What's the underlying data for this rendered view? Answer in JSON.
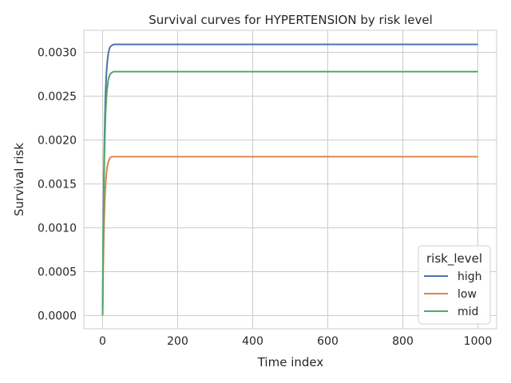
{
  "chart_data": {
    "type": "line",
    "title": "Survival curves for HYPERTENSION by risk level",
    "xlabel": "Time index",
    "ylabel": "Survival risk",
    "xlim": [
      -50,
      1050
    ],
    "ylim": [
      -0.00015,
      0.00325
    ],
    "x_ticks": [
      0,
      200,
      400,
      600,
      800,
      1000
    ],
    "x_tick_labels": [
      "0",
      "200",
      "400",
      "600",
      "800",
      "1000"
    ],
    "y_ticks": [
      0,
      0.0005,
      0.001,
      0.0015,
      0.002,
      0.0025,
      0.003
    ],
    "y_tick_labels": [
      "0.0000",
      "0.0005",
      "0.0010",
      "0.0015",
      "0.0020",
      "0.0025",
      "0.0030"
    ],
    "grid": true,
    "legend": {
      "title": "risk_level",
      "placement": "lower-right"
    },
    "x": [
      0,
      1,
      2,
      3,
      4,
      5,
      6,
      8,
      10,
      12,
      15,
      18,
      20,
      25,
      30,
      40,
      60,
      100,
      200,
      400,
      600,
      800,
      1000
    ],
    "series": [
      {
        "name": "high",
        "color": "#4c72b0",
        "values": [
          0.0,
          0.00059,
          0.00107,
          0.00146,
          0.00178,
          0.00203,
          0.00224,
          0.00255,
          0.00274,
          0.00287,
          0.00298,
          0.00304,
          0.00306,
          0.00308,
          0.00309,
          0.00309,
          0.00309,
          0.00309,
          0.00309,
          0.00309,
          0.00309,
          0.00309,
          0.00309
        ]
      },
      {
        "name": "low",
        "color": "#dd8452",
        "values": [
          0.0,
          0.00035,
          0.00063,
          0.00086,
          0.00105,
          0.0012,
          0.00132,
          0.0015,
          0.00161,
          0.00169,
          0.00175,
          0.00178,
          0.0018,
          0.00181,
          0.00181,
          0.00181,
          0.00181,
          0.00181,
          0.00181,
          0.00181,
          0.00181,
          0.00181,
          0.00181
        ]
      },
      {
        "name": "mid",
        "color": "#55a868",
        "values": [
          0.0,
          0.00053,
          0.00097,
          0.00132,
          0.0016,
          0.00183,
          0.00202,
          0.0023,
          0.00247,
          0.00258,
          0.00268,
          0.00273,
          0.00275,
          0.00277,
          0.00278,
          0.00278,
          0.00278,
          0.00278,
          0.00278,
          0.00278,
          0.00278,
          0.00278,
          0.00278
        ]
      }
    ]
  }
}
